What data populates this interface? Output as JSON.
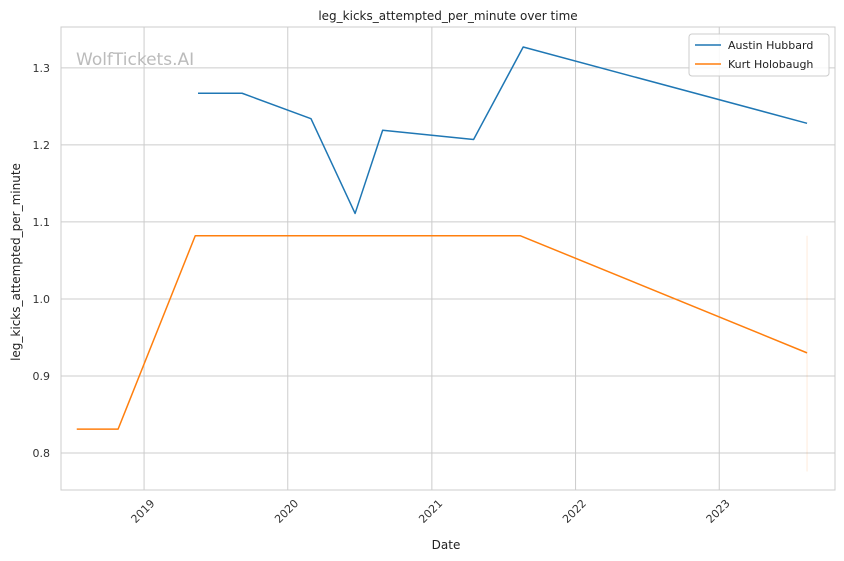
{
  "watermark": "WolfTickets.AI",
  "chart_data": {
    "type": "line",
    "title": "leg_kicks_attempted_per_minute over time",
    "xlabel": "Date",
    "ylabel": "leg_kicks_attempted_per_minute",
    "xlim": [
      "2018-06-04",
      "2023-10-22"
    ],
    "ylim": [
      0.752,
      1.353
    ],
    "x_ticks": [
      "2019",
      "2020",
      "2021",
      "2022",
      "2023"
    ],
    "y_ticks": [
      "0.8",
      "0.9",
      "1.0",
      "1.1",
      "1.2",
      "1.3"
    ],
    "grid": true,
    "legend_position": "top-right",
    "series": [
      {
        "name": "Austin Hubbard",
        "color": "#1f77b4",
        "points": [
          {
            "x": "2019-05-18",
            "y": 1.267
          },
          {
            "x": "2019-09-07",
            "y": 1.267
          },
          {
            "x": "2020-02-29",
            "y": 1.234
          },
          {
            "x": "2020-06-20",
            "y": 1.111
          },
          {
            "x": "2020-08-29",
            "y": 1.219
          },
          {
            "x": "2021-04-17",
            "y": 1.207
          },
          {
            "x": "2021-08-21",
            "y": 1.327
          },
          {
            "x": "2023-08-12",
            "y": 1.228
          }
        ]
      },
      {
        "name": "Kurt Holobaugh",
        "color": "#ff7f0e",
        "points": [
          {
            "x": "2018-07-14",
            "y": 0.831
          },
          {
            "x": "2018-10-27",
            "y": 0.831
          },
          {
            "x": "2019-05-11",
            "y": 1.082
          },
          {
            "x": "2021-08-14",
            "y": 1.082
          },
          {
            "x": "2023-08-12",
            "y": 0.93
          }
        ]
      }
    ],
    "annotations": [
      {
        "type": "vline",
        "x": "2023-08-12",
        "y_from": 0.776,
        "y_to": 1.082,
        "color": "#ff7f0e",
        "opacity": 0.15
      }
    ]
  }
}
